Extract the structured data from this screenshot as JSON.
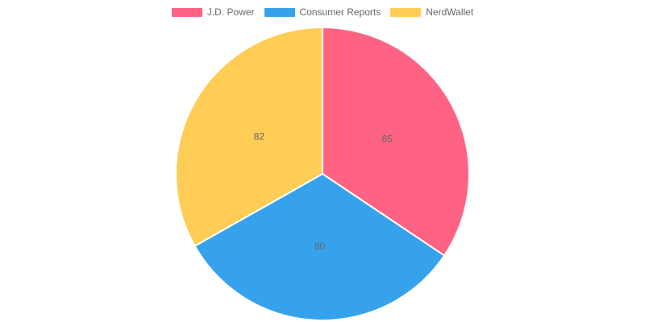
{
  "chart_data": {
    "type": "pie",
    "categories": [
      "J.D. Power",
      "Consumer Reports",
      "NerdWallet"
    ],
    "values": [
      85,
      80,
      82
    ],
    "colors": [
      "#ff6384",
      "#36a2eb",
      "#ffcd56"
    ],
    "legend_position": "top"
  }
}
